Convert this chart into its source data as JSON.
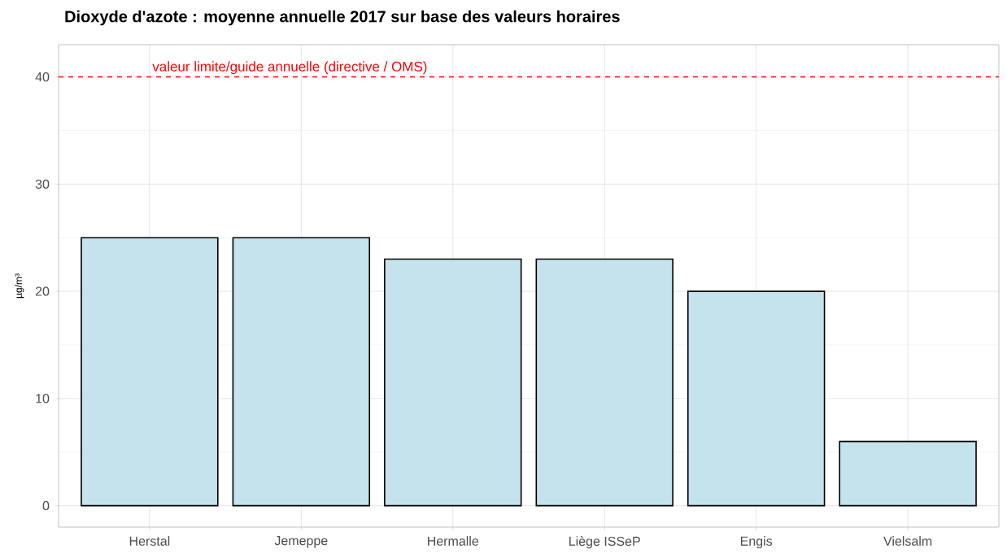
{
  "chart_data": {
    "type": "bar",
    "title": "Dioxyde d'azote : moyenne annuelle 2017 sur base des valeurs horaires",
    "ylabel": "µg/m³",
    "categories": [
      "Herstal",
      "Jemeppe",
      "Hermalle",
      "Liège ISSeP",
      "Engis",
      "Vielsalm"
    ],
    "values": [
      25,
      25,
      23,
      23,
      20,
      6
    ],
    "color": "#c5e3ec",
    "ylim": [
      -2,
      43
    ],
    "yticks": [
      0,
      10,
      20,
      30,
      40
    ],
    "grid": true,
    "ref_lines": [
      {
        "axis": "y",
        "value": 40,
        "label": "valeur limite/guide annuelle (directive / OMS)",
        "color": "#ff0000",
        "line_style": "dashed"
      }
    ]
  }
}
